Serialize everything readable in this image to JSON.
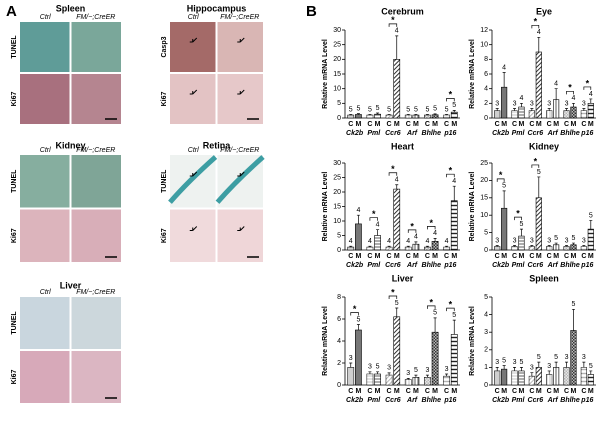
{
  "panel_a": {
    "label": "A",
    "column_headers": [
      "Ctrl",
      "FM/−;CreER"
    ],
    "tissues": [
      {
        "name": "Spleen",
        "rows": [
          "TUNEL",
          "Ki67"
        ]
      },
      {
        "name": "Hippocampus",
        "rows": [
          "Casp3",
          "Ki67"
        ]
      },
      {
        "name": "Kidney",
        "rows": [
          "TUNEL",
          "Ki67"
        ]
      },
      {
        "name": "Retina",
        "rows": [
          "TUNEL",
          "Ki67"
        ]
      },
      {
        "name": "Liver",
        "rows": [
          "TUNEL",
          "Ki67"
        ]
      }
    ]
  },
  "panel_b": {
    "label": "B"
  },
  "chart_data": [
    {
      "type": "bar",
      "title": "Cerebrum",
      "y_label": "Relative mRNA Level",
      "categories": [
        "Ck2b",
        "Pml",
        "Ccr6",
        "Arf",
        "Bhlhe",
        "p16"
      ],
      "series": [
        {
          "name": "C",
          "values": [
            1,
            1,
            1,
            1,
            1,
            1
          ],
          "errors": [
            0.2,
            0.2,
            0.2,
            0.2,
            0.2,
            0.2
          ],
          "n": [
            5,
            5,
            5,
            5,
            5,
            5
          ]
        },
        {
          "name": "M",
          "values": [
            1.2,
            1.3,
            20,
            1,
            1.1,
            2
          ],
          "errors": [
            0.3,
            0.4,
            8,
            0.2,
            0.3,
            0.6
          ],
          "n": [
            5,
            5,
            4,
            5,
            5,
            5
          ]
        }
      ],
      "significance": [
        null,
        null,
        "*",
        null,
        null,
        "*"
      ],
      "ylim": [
        0,
        30
      ],
      "yticks": [
        0,
        5,
        10,
        15,
        20,
        25,
        30
      ]
    },
    {
      "type": "bar",
      "title": "Eye",
      "y_label": "Relative mRNA Level",
      "categories": [
        "Ck2b",
        "Pml",
        "Ccr6",
        "Arf",
        "Bhlhe",
        "p16"
      ],
      "series": [
        {
          "name": "C",
          "values": [
            1,
            1,
            1,
            1,
            1,
            1
          ],
          "errors": [
            0.3,
            0.3,
            0.3,
            0.3,
            0.3,
            0.3
          ],
          "n": [
            3,
            3,
            3,
            3,
            3,
            3
          ]
        },
        {
          "name": "M",
          "values": [
            4.2,
            1.5,
            9,
            2.5,
            1.5,
            2
          ],
          "errors": [
            2,
            0.5,
            2,
            1.5,
            0.5,
            0.6
          ],
          "n": [
            4,
            4,
            4,
            4,
            4,
            4
          ]
        }
      ],
      "significance": [
        null,
        null,
        "*",
        null,
        "*",
        "*"
      ],
      "ylim": [
        0,
        12
      ],
      "yticks": [
        0,
        2,
        4,
        6,
        8,
        10,
        12
      ]
    },
    {
      "type": "bar",
      "title": "Heart",
      "y_label": "Relative mRNA Level",
      "categories": [
        "Ck2b",
        "Pml",
        "Ccr6",
        "Arf",
        "Bhlhe",
        "p16"
      ],
      "series": [
        {
          "name": "C",
          "values": [
            1,
            1,
            1,
            1,
            1,
            1
          ],
          "errors": [
            0.3,
            0.3,
            0.3,
            0.3,
            0.3,
            0.3
          ],
          "n": [
            4,
            4,
            4,
            4,
            4,
            4
          ]
        },
        {
          "name": "M",
          "values": [
            9,
            5,
            21,
            2,
            3,
            17
          ],
          "errors": [
            3,
            2,
            1.5,
            0.8,
            1,
            5
          ],
          "n": [
            4,
            4,
            4,
            4,
            4,
            4
          ]
        }
      ],
      "significance": [
        null,
        "*",
        "*",
        "*",
        "*",
        "*"
      ],
      "ylim": [
        0,
        30
      ],
      "yticks": [
        0,
        5,
        10,
        15,
        20,
        25,
        30
      ]
    },
    {
      "type": "bar",
      "title": "Kidney",
      "y_label": "Relative mRNA Level",
      "categories": [
        "Ck2b",
        "Pml",
        "Ccr6",
        "Arf",
        "Bhlhe",
        "p16"
      ],
      "series": [
        {
          "name": "C",
          "values": [
            1,
            1,
            1,
            1,
            1,
            1
          ],
          "errors": [
            0.3,
            0.3,
            0.3,
            0.3,
            0.3,
            0.3
          ],
          "n": [
            3,
            3,
            3,
            3,
            3,
            3
          ]
        },
        {
          "name": "M",
          "values": [
            12,
            4,
            15,
            1.5,
            1.5,
            6
          ],
          "errors": [
            5,
            2,
            6,
            0.5,
            0.5,
            2.5
          ],
          "n": [
            5,
            5,
            5,
            5,
            5,
            5
          ]
        }
      ],
      "significance": [
        "*",
        "*",
        "*",
        null,
        null,
        null
      ],
      "ylim": [
        0,
        25
      ],
      "yticks": [
        0,
        5,
        10,
        15,
        20,
        25
      ]
    },
    {
      "type": "bar",
      "title": "Liver",
      "y_label": "Relative mRNA Level",
      "categories": [
        "Ck2b",
        "Pml",
        "Ccr6",
        "Arf",
        "Bhlhe",
        "p16"
      ],
      "series": [
        {
          "name": "C",
          "values": [
            1.6,
            1,
            0.9,
            0.5,
            0.7,
            0.8
          ],
          "errors": [
            0.4,
            0.2,
            0.2,
            0.1,
            0.2,
            0.2
          ],
          "n": [
            3,
            3,
            3,
            3,
            3,
            3
          ]
        },
        {
          "name": "M",
          "values": [
            5,
            1,
            6.2,
            0.7,
            4.8,
            4.6
          ],
          "errors": [
            0.5,
            0.2,
            0.8,
            0.2,
            1.3,
            1.3
          ],
          "n": [
            5,
            5,
            5,
            5,
            5,
            5
          ]
        }
      ],
      "significance": [
        "*",
        null,
        "*",
        null,
        "*",
        "*"
      ],
      "ylim": [
        0,
        8
      ],
      "yticks": [
        0,
        2,
        4,
        6,
        8
      ]
    },
    {
      "type": "bar",
      "title": "Spleen",
      "y_label": "Relative mRNA Level",
      "categories": [
        "Ck2b",
        "Pml",
        "Ccr6",
        "Arf",
        "Bhlhe",
        "p16"
      ],
      "series": [
        {
          "name": "C",
          "values": [
            0.8,
            0.8,
            0.5,
            0.6,
            1,
            1
          ],
          "errors": [
            0.2,
            0.2,
            0.2,
            0.2,
            0.3,
            0.3
          ],
          "n": [
            3,
            3,
            3,
            3,
            3,
            3
          ]
        },
        {
          "name": "M",
          "values": [
            0.9,
            0.8,
            1,
            1,
            3.1,
            0.6
          ],
          "errors": [
            0.2,
            0.2,
            0.3,
            0.3,
            1.2,
            0.2
          ],
          "n": [
            5,
            5,
            5,
            5,
            5,
            5
          ]
        }
      ],
      "significance": [
        null,
        null,
        null,
        null,
        null,
        null
      ],
      "ylim": [
        0,
        5
      ],
      "yticks": [
        0,
        1,
        2,
        3,
        4,
        5
      ]
    }
  ]
}
